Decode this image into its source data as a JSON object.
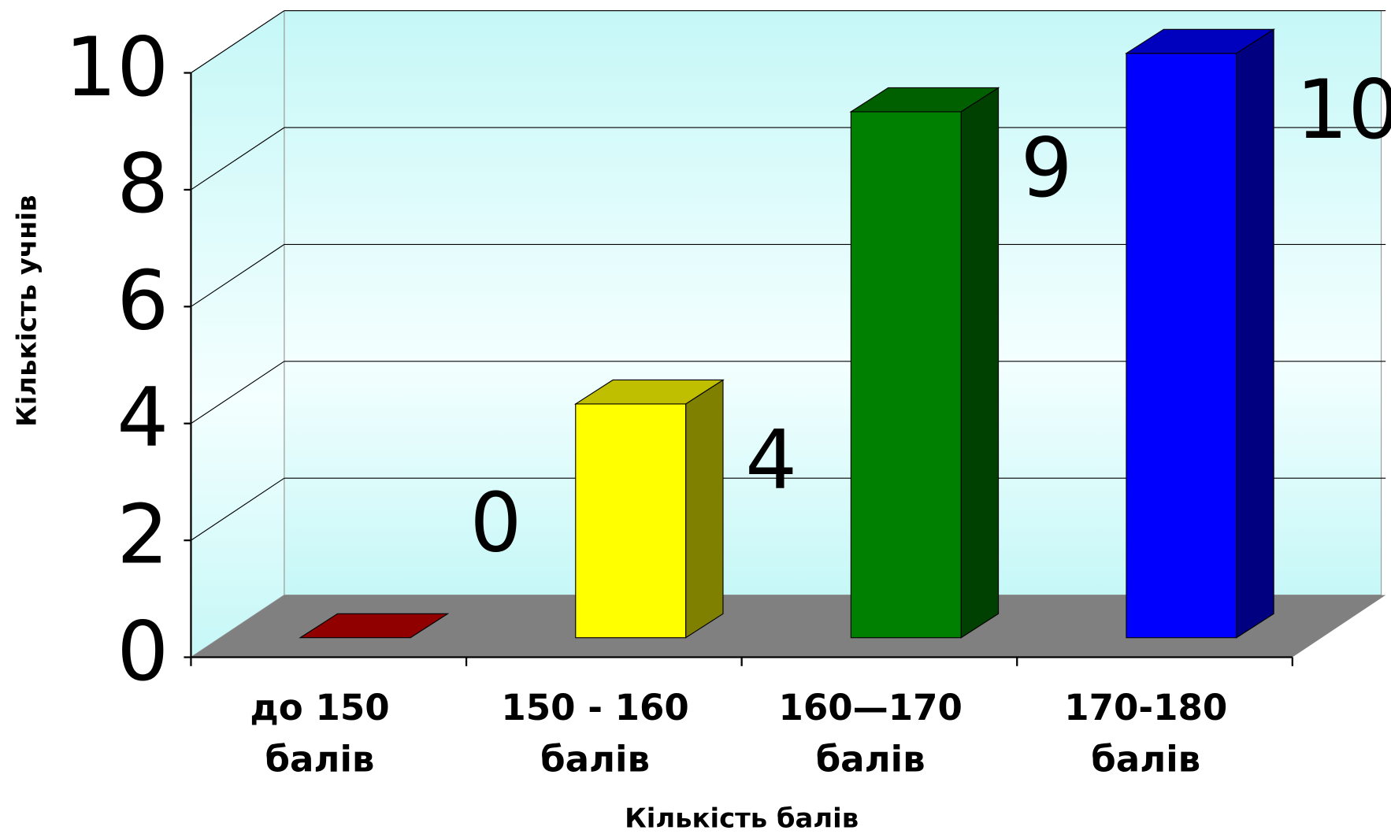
{
  "chart_data": {
    "type": "bar3d",
    "categories": [
      [
        "до 150",
        "балів"
      ],
      [
        "150 - 160",
        "балів"
      ],
      [
        "160—170",
        "балів"
      ],
      [
        "170-180",
        "балів"
      ]
    ],
    "values": [
      0,
      4,
      9,
      10
    ],
    "colors": [
      "#c00000",
      "#ffff00",
      "#008000",
      "#0000ff"
    ],
    "x_label": "Кількість балів",
    "y_label": "Кількість учнів",
    "ylim": [
      0,
      10
    ],
    "yticks": [
      0,
      2,
      4,
      6,
      8,
      10
    ],
    "grid": true
  }
}
